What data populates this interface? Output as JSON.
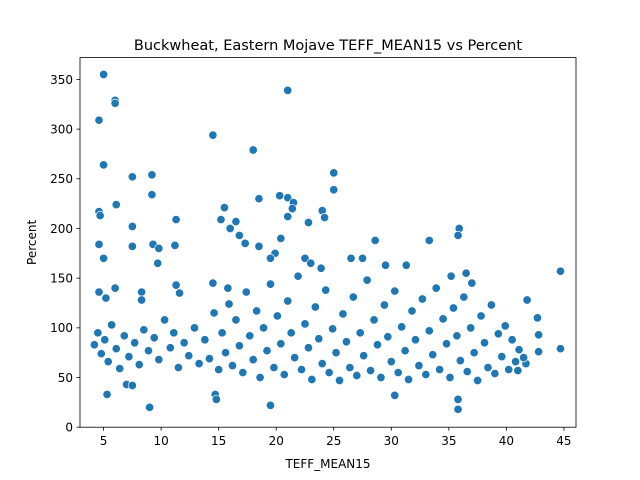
{
  "chart_data": {
    "type": "scatter",
    "title": "Buckwheat, Eastern Mojave TEFF_MEAN15 vs Percent",
    "xlabel": "TEFF_MEAN15",
    "ylabel": "Percent",
    "xlim": [
      2.95,
      46.05
    ],
    "ylim": [
      0,
      372
    ],
    "xticks": [
      5,
      10,
      15,
      20,
      25,
      30,
      35,
      40,
      45
    ],
    "yticks": [
      0,
      50,
      100,
      150,
      200,
      250,
      300,
      350
    ],
    "grid": false,
    "legend": "none",
    "marker_color": "#1f77b4",
    "marker_edge_color": "#ffffff",
    "points": [
      [
        5.0,
        355
      ],
      [
        4.6,
        309
      ],
      [
        6.0,
        329
      ],
      [
        6.0,
        326
      ],
      [
        21.0,
        339
      ],
      [
        14.5,
        294
      ],
      [
        18.0,
        279
      ],
      [
        5.0,
        264
      ],
      [
        9.2,
        254
      ],
      [
        7.5,
        252
      ],
      [
        25.0,
        256
      ],
      [
        9.2,
        234
      ],
      [
        25.0,
        239
      ],
      [
        6.1,
        224
      ],
      [
        4.6,
        217
      ],
      [
        4.7,
        213
      ],
      [
        11.3,
        209
      ],
      [
        15.5,
        221
      ],
      [
        15.2,
        209
      ],
      [
        16.5,
        207
      ],
      [
        18.5,
        230
      ],
      [
        20.3,
        233
      ],
      [
        21.0,
        231
      ],
      [
        21.5,
        226
      ],
      [
        21.4,
        220
      ],
      [
        21.0,
        212
      ],
      [
        24.0,
        218
      ],
      [
        24.2,
        211
      ],
      [
        22.8,
        206
      ],
      [
        35.9,
        200
      ],
      [
        35.8,
        193
      ],
      [
        20.4,
        190
      ],
      [
        28.6,
        188
      ],
      [
        33.3,
        188
      ],
      [
        7.5,
        202
      ],
      [
        4.6,
        184
      ],
      [
        9.3,
        184
      ],
      [
        7.5,
        182
      ],
      [
        9.8,
        180
      ],
      [
        11.2,
        183
      ],
      [
        9.7,
        165
      ],
      [
        5.0,
        170
      ],
      [
        16.0,
        200
      ],
      [
        16.8,
        193
      ],
      [
        17.3,
        185
      ],
      [
        18.5,
        182
      ],
      [
        19.9,
        175
      ],
      [
        19.5,
        170
      ],
      [
        22.5,
        170
      ],
      [
        23.0,
        165
      ],
      [
        23.9,
        160
      ],
      [
        26.5,
        170
      ],
      [
        27.5,
        170
      ],
      [
        29.5,
        163
      ],
      [
        31.3,
        163
      ],
      [
        35.2,
        152
      ],
      [
        36.5,
        155
      ],
      [
        37.0,
        145
      ],
      [
        14.5,
        145
      ],
      [
        15.8,
        140
      ],
      [
        6.0,
        140
      ],
      [
        4.6,
        136
      ],
      [
        5.2,
        130
      ],
      [
        11.3,
        143
      ],
      [
        11.6,
        135
      ],
      [
        8.3,
        136
      ],
      [
        8.3,
        128
      ],
      [
        44.7,
        157
      ],
      [
        41.8,
        128
      ],
      [
        42.7,
        110
      ],
      [
        42.8,
        93
      ],
      [
        42.8,
        76
      ],
      [
        44.7,
        79
      ],
      [
        41.7,
        64
      ],
      [
        9.0,
        20
      ],
      [
        5.3,
        33
      ],
      [
        7.0,
        43
      ],
      [
        7.5,
        42
      ],
      [
        14.7,
        33
      ],
      [
        14.8,
        28
      ],
      [
        19.5,
        22
      ],
      [
        30.3,
        32
      ],
      [
        35.8,
        28
      ],
      [
        35.8,
        18
      ],
      [
        41.0,
        57
      ],
      [
        4.2,
        83
      ],
      [
        4.5,
        95
      ],
      [
        4.8,
        74
      ],
      [
        5.1,
        88
      ],
      [
        5.4,
        66
      ],
      [
        5.7,
        103
      ],
      [
        6.1,
        79
      ],
      [
        6.4,
        59
      ],
      [
        6.8,
        92
      ],
      [
        7.2,
        71
      ],
      [
        7.7,
        85
      ],
      [
        8.1,
        63
      ],
      [
        8.5,
        98
      ],
      [
        8.9,
        77
      ],
      [
        9.4,
        90
      ],
      [
        9.8,
        68
      ],
      [
        10.3,
        108
      ],
      [
        10.8,
        80
      ],
      [
        11.1,
        95
      ],
      [
        11.5,
        60
      ],
      [
        12.0,
        85
      ],
      [
        12.4,
        72
      ],
      [
        12.9,
        100
      ],
      [
        13.3,
        64
      ],
      [
        13.8,
        88
      ],
      [
        14.2,
        69
      ],
      [
        14.6,
        115
      ],
      [
        15.0,
        58
      ],
      [
        15.3,
        95
      ],
      [
        15.6,
        75
      ],
      [
        15.9,
        124
      ],
      [
        16.2,
        62
      ],
      [
        16.5,
        108
      ],
      [
        16.8,
        82
      ],
      [
        17.1,
        55
      ],
      [
        17.4,
        136
      ],
      [
        17.7,
        92
      ],
      [
        18.0,
        68
      ],
      [
        18.3,
        117
      ],
      [
        18.6,
        50
      ],
      [
        18.9,
        100
      ],
      [
        19.2,
        77
      ],
      [
        19.5,
        144
      ],
      [
        19.8,
        60
      ],
      [
        20.1,
        112
      ],
      [
        20.4,
        84
      ],
      [
        20.7,
        53
      ],
      [
        21.0,
        127
      ],
      [
        21.3,
        95
      ],
      [
        21.6,
        70
      ],
      [
        21.9,
        152
      ],
      [
        22.2,
        58
      ],
      [
        22.5,
        104
      ],
      [
        22.8,
        80
      ],
      [
        23.1,
        48
      ],
      [
        23.4,
        121
      ],
      [
        23.7,
        89
      ],
      [
        24.0,
        64
      ],
      [
        24.3,
        138
      ],
      [
        24.6,
        55
      ],
      [
        24.9,
        99
      ],
      [
        25.2,
        75
      ],
      [
        25.5,
        47
      ],
      [
        25.8,
        114
      ],
      [
        26.1,
        86
      ],
      [
        26.4,
        60
      ],
      [
        26.7,
        131
      ],
      [
        27.0,
        52
      ],
      [
        27.3,
        95
      ],
      [
        27.6,
        72
      ],
      [
        27.9,
        148
      ],
      [
        28.2,
        57
      ],
      [
        28.5,
        108
      ],
      [
        28.8,
        83
      ],
      [
        29.1,
        50
      ],
      [
        29.4,
        123
      ],
      [
        29.7,
        91
      ],
      [
        30.0,
        66
      ],
      [
        30.3,
        137
      ],
      [
        30.6,
        55
      ],
      [
        30.9,
        101
      ],
      [
        31.2,
        77
      ],
      [
        31.5,
        48
      ],
      [
        31.8,
        117
      ],
      [
        32.1,
        88
      ],
      [
        32.4,
        62
      ],
      [
        32.7,
        129
      ],
      [
        33.0,
        53
      ],
      [
        33.3,
        97
      ],
      [
        33.6,
        73
      ],
      [
        33.9,
        140
      ],
      [
        34.2,
        58
      ],
      [
        34.5,
        109
      ],
      [
        34.8,
        84
      ],
      [
        35.1,
        50
      ],
      [
        35.4,
        120
      ],
      [
        35.7,
        92
      ],
      [
        36.0,
        67
      ],
      [
        36.3,
        131
      ],
      [
        36.6,
        56
      ],
      [
        36.9,
        100
      ],
      [
        37.2,
        75
      ],
      [
        37.5,
        47
      ],
      [
        37.8,
        112
      ],
      [
        38.1,
        85
      ],
      [
        38.4,
        60
      ],
      [
        38.7,
        123
      ],
      [
        39.0,
        54
      ],
      [
        39.3,
        94
      ],
      [
        39.6,
        71
      ],
      [
        39.9,
        102
      ],
      [
        40.2,
        58
      ],
      [
        40.5,
        88
      ],
      [
        40.8,
        66
      ],
      [
        41.1,
        78
      ],
      [
        41.5,
        70
      ]
    ]
  }
}
